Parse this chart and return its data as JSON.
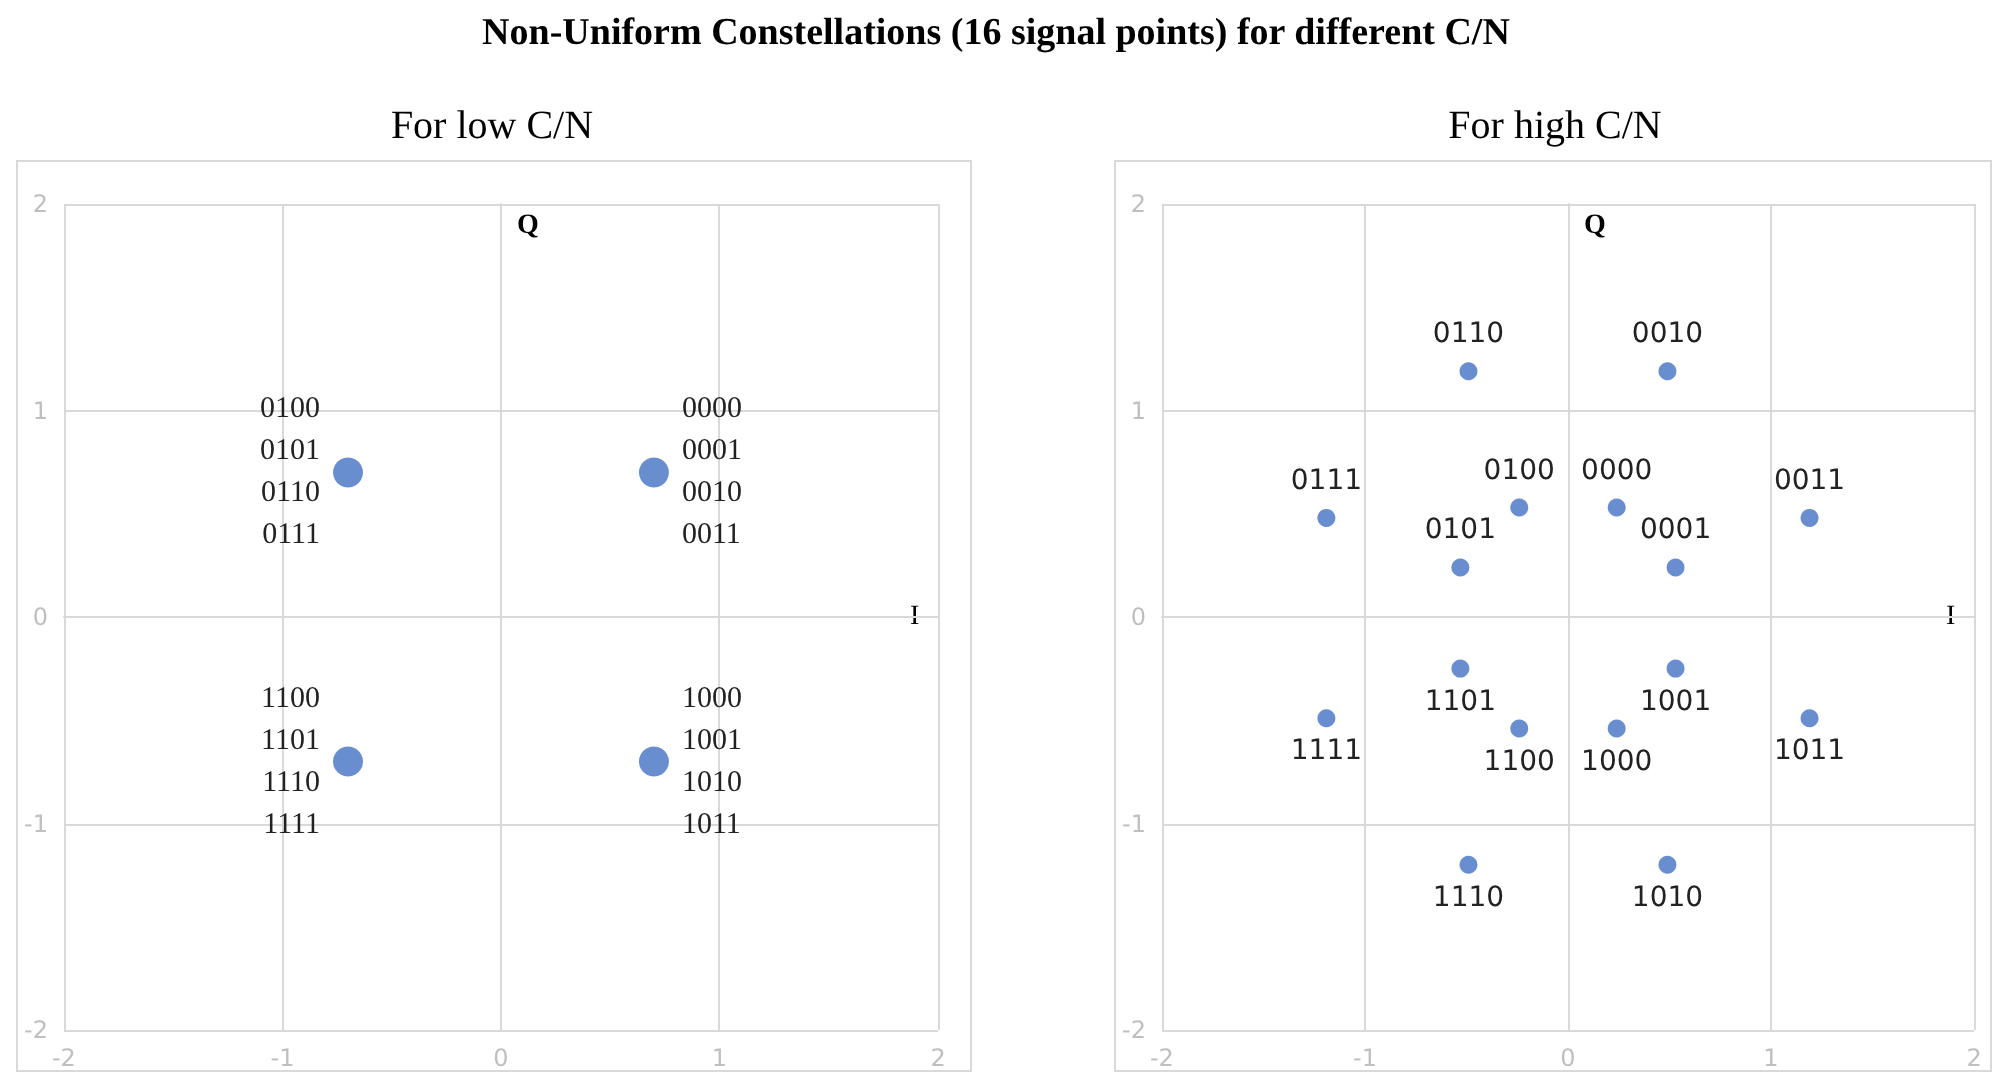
{
  "chart_data": [
    {
      "type": "scatter",
      "title": "Non-Uniform Constellations (16 signal points) for different C/N",
      "subtitle": "For low C/N",
      "xlabel": "I",
      "ylabel": "Q",
      "xlim": [
        -2,
        2
      ],
      "ylim": [
        -2,
        2
      ],
      "xticks": [
        -2,
        -1,
        0,
        1,
        2
      ],
      "yticks": [
        -2,
        -1,
        0,
        1,
        2
      ],
      "grid": true,
      "marker": "circle",
      "color": "#4472c4",
      "x": [
        -0.7,
        0.7,
        -0.7,
        0.7
      ],
      "values": [
        0.7,
        0.7,
        -0.7,
        -0.7
      ],
      "annotations": [
        {
          "text": "0100\n0101\n0110\n0111",
          "x": -0.7,
          "y": 0.7
        },
        {
          "text": "0000\n0001\n0010\n0011",
          "x": 0.7,
          "y": 0.7
        },
        {
          "text": "1100\n1101\n1110\n1111",
          "x": -0.7,
          "y": -0.7
        },
        {
          "text": "1000\n1001\n1010\n1011",
          "x": 0.7,
          "y": -0.7
        }
      ]
    },
    {
      "type": "scatter",
      "subtitle": "For high C/N",
      "xlabel": "I",
      "ylabel": "Q",
      "xlim": [
        -2,
        2
      ],
      "ylim": [
        -2,
        2
      ],
      "xticks": [
        -2,
        -1,
        0,
        1,
        2
      ],
      "yticks": [
        -2,
        -1,
        0,
        1,
        2
      ],
      "grid": true,
      "marker": "circle",
      "color": "#4472c4",
      "x": [
        -0.49,
        0.49,
        -1.19,
        -0.24,
        0.24,
        1.19,
        -0.53,
        0.53,
        -0.53,
        0.53,
        -1.19,
        -0.24,
        0.24,
        1.19,
        -0.49,
        0.49
      ],
      "values": [
        1.19,
        1.19,
        0.48,
        0.53,
        0.53,
        0.48,
        0.24,
        0.24,
        -0.25,
        -0.25,
        -0.49,
        -0.54,
        -0.54,
        -0.49,
        -1.2,
        -1.2
      ],
      "annotations": [
        {
          "text": "0110",
          "x": -0.49,
          "y": 1.19
        },
        {
          "text": "0010",
          "x": 0.49,
          "y": 1.19
        },
        {
          "text": "0111",
          "x": -1.19,
          "y": 0.48
        },
        {
          "text": "0100",
          "x": -0.24,
          "y": 0.53
        },
        {
          "text": "0000",
          "x": 0.24,
          "y": 0.53
        },
        {
          "text": "0011",
          "x": 1.19,
          "y": 0.48
        },
        {
          "text": "0101",
          "x": -0.53,
          "y": 0.24
        },
        {
          "text": "0001",
          "x": 0.53,
          "y": 0.24
        },
        {
          "text": "1101",
          "x": -0.53,
          "y": -0.25
        },
        {
          "text": "1001",
          "x": 0.53,
          "y": -0.25
        },
        {
          "text": "1111",
          "x": -1.19,
          "y": -0.49
        },
        {
          "text": "1100",
          "x": -0.24,
          "y": -0.54
        },
        {
          "text": "1000",
          "x": 0.24,
          "y": -0.54
        },
        {
          "text": "1011",
          "x": 1.19,
          "y": -0.49
        },
        {
          "text": "1110",
          "x": -0.49,
          "y": -1.2
        },
        {
          "text": "1010",
          "x": 0.49,
          "y": -1.2
        }
      ]
    }
  ]
}
